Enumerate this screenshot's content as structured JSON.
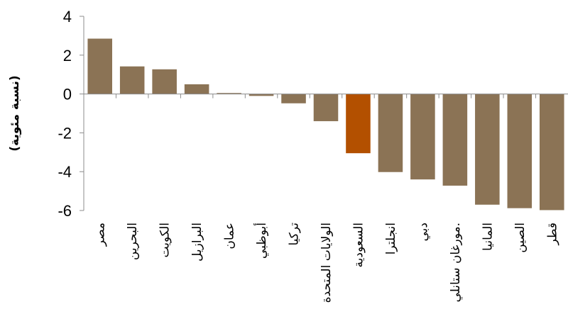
{
  "chart_data": {
    "type": "bar",
    "title": "",
    "xlabel": "",
    "ylabel": "(نسبة مئوية)",
    "ylim": [
      -6,
      4
    ],
    "yticks": [
      4,
      2,
      0,
      -2,
      -4,
      -6
    ],
    "ytick_labels": [
      "4",
      "2",
      "0",
      "-2",
      "-4",
      "-6"
    ],
    "grid": false,
    "categories": [
      "مصر",
      "البحرين",
      "الكويت",
      "البرازيل",
      "عمان",
      "أبوظبي",
      "تركيا",
      "الولايات المتحدة",
      "السعودية",
      "انجلترا",
      "دبي",
      "مورغان ستانلي.",
      "المانيا",
      "الصين",
      "قطر"
    ],
    "values": [
      2.85,
      1.42,
      1.27,
      0.5,
      0.05,
      -0.1,
      -0.48,
      -1.4,
      -3.05,
      -4.02,
      -4.4,
      -4.72,
      -5.7,
      -5.88,
      -5.98
    ],
    "colors": [
      "#8b7355",
      "#8b7355",
      "#8b7355",
      "#8b7355",
      "#8b7355",
      "#8b7355",
      "#8b7355",
      "#8b7355",
      "#b35000",
      "#8b7355",
      "#8b7355",
      "#8b7355",
      "#8b7355",
      "#8b7355",
      "#8b7355"
    ]
  }
}
